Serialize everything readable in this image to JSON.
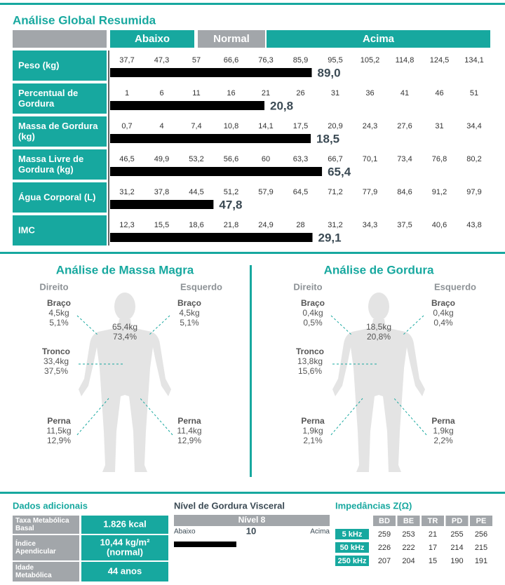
{
  "summary": {
    "title": "Análise Global Resumida",
    "header": [
      "Abaixo",
      "Normal",
      "Acima"
    ],
    "rows": [
      {
        "label": [
          "Peso (kg)"
        ],
        "ticks": [
          {
            "value": 37.7,
            "label": "37,7"
          },
          {
            "value": 47.3,
            "label": "47,3"
          },
          57,
          {
            "value": 66.6,
            "label": "66,6"
          },
          {
            "value": 76.3,
            "label": "76,3"
          },
          {
            "value": 85.9,
            "label": "85,9"
          },
          {
            "value": 95.5,
            "label": "95,5"
          },
          {
            "value": 105.2,
            "label": "105,2"
          },
          {
            "value": 114.8,
            "label": "114,8"
          },
          {
            "value": 124.5,
            "label": "124,5"
          },
          {
            "value": 134.1,
            "label": "134,1"
          }
        ],
        "value": 89.0,
        "value_label": "89,0"
      },
      {
        "label": [
          "Percentual de",
          "Gordura"
        ],
        "ticks": [
          1,
          6,
          11,
          16,
          21,
          26,
          31,
          36,
          41,
          46,
          51
        ],
        "value": 20.8,
        "value_label": "20,8"
      },
      {
        "label": [
          "Massa de Gordura",
          "(kg)"
        ],
        "ticks": [
          {
            "value": 0.7,
            "label": "0,7"
          },
          4,
          {
            "value": 7.4,
            "label": "7,4"
          },
          {
            "value": 10.8,
            "label": "10,8"
          },
          {
            "value": 14.1,
            "label": "14,1"
          },
          {
            "value": 17.5,
            "label": "17,5"
          },
          {
            "value": 20.9,
            "label": "20,9"
          },
          {
            "value": 24.3,
            "label": "24,3"
          },
          {
            "value": 27.6,
            "label": "27,6"
          },
          31,
          {
            "value": 34.4,
            "label": "34,4"
          }
        ],
        "value": 18.5,
        "value_label": "18,5"
      },
      {
        "label": [
          "Massa Livre de",
          "Gordura (kg)"
        ],
        "ticks": [
          {
            "value": 46.5,
            "label": "46,5"
          },
          {
            "value": 49.9,
            "label": "49,9"
          },
          {
            "value": 53.2,
            "label": "53,2"
          },
          {
            "value": 56.6,
            "label": "56,6"
          },
          60,
          {
            "value": 63.3,
            "label": "63,3"
          },
          {
            "value": 66.7,
            "label": "66,7"
          },
          {
            "value": 70.1,
            "label": "70,1"
          },
          {
            "value": 73.4,
            "label": "73,4"
          },
          {
            "value": 76.8,
            "label": "76,8"
          },
          {
            "value": 80.2,
            "label": "80,2"
          }
        ],
        "value": 65.4,
        "value_label": "65,4"
      },
      {
        "label": [
          "Água Corporal (L)"
        ],
        "ticks": [
          {
            "value": 31.2,
            "label": "31,2"
          },
          {
            "value": 37.8,
            "label": "37,8"
          },
          {
            "value": 44.5,
            "label": "44,5"
          },
          {
            "value": 51.2,
            "label": "51,2"
          },
          {
            "value": 57.9,
            "label": "57,9"
          },
          {
            "value": 64.5,
            "label": "64,5"
          },
          {
            "value": 71.2,
            "label": "71,2"
          },
          {
            "value": 77.9,
            "label": "77,9"
          },
          {
            "value": 84.6,
            "label": "84,6"
          },
          {
            "value": 91.2,
            "label": "91,2"
          },
          {
            "value": 97.9,
            "label": "97,9"
          }
        ],
        "value": 47.8,
        "value_label": "47,8"
      },
      {
        "label": [
          "IMC"
        ],
        "ticks": [
          {
            "value": 12.3,
            "label": "12,3"
          },
          {
            "value": 15.5,
            "label": "15,5"
          },
          {
            "value": 18.6,
            "label": "18,6"
          },
          {
            "value": 21.8,
            "label": "21,8"
          },
          {
            "value": 24.9,
            "label": "24,9"
          },
          28,
          {
            "value": 31.2,
            "label": "31,2"
          },
          {
            "value": 34.3,
            "label": "34,3"
          },
          {
            "value": 37.5,
            "label": "37,5"
          },
          {
            "value": 40.6,
            "label": "40,6"
          },
          {
            "value": 43.8,
            "label": "43,8"
          }
        ],
        "value": 29.1,
        "value_label": "29,1"
      }
    ]
  },
  "panels": [
    {
      "title": "Análise de Massa Magra",
      "right_side": "Direito",
      "left_side": "Esquerdo",
      "total": [
        "65,4kg",
        "73,4%"
      ],
      "segments": [
        {
          "name": "Braço",
          "values": [
            "4,5kg",
            "5,1%"
          ]
        },
        {
          "name": "Braço",
          "values": [
            "4,5kg",
            "5,1%"
          ]
        },
        {
          "name": "Tronco",
          "values": [
            "33,4kg",
            "37,5%"
          ]
        },
        {
          "name": "Perna",
          "values": [
            "11,5kg",
            "12,9%"
          ]
        },
        {
          "name": "Perna",
          "values": [
            "11,4kg",
            "12,9%"
          ]
        }
      ]
    },
    {
      "title": "Análise de Gordura",
      "right_side": "Direito",
      "left_side": "Esquerdo",
      "total": [
        "18,5kg",
        "20,8%"
      ],
      "segments": [
        {
          "name": "Braço",
          "values": [
            "0,4kg",
            "0,5%"
          ]
        },
        {
          "name": "Braço",
          "values": [
            "0,4kg",
            "0,4%"
          ]
        },
        {
          "name": "Tronco",
          "values": [
            "13,8kg",
            "15,6%"
          ]
        },
        {
          "name": "Perna",
          "values": [
            "1,9kg",
            "2,1%"
          ]
        },
        {
          "name": "Perna",
          "values": [
            "1,9kg",
            "2,2%"
          ]
        }
      ]
    }
  ],
  "additional": {
    "title": "Dados adicionais",
    "rows": [
      {
        "label": [
          "Taxa Metabólica",
          "Basal"
        ],
        "value": [
          "1.826 kcal"
        ]
      },
      {
        "label": [
          "Índice",
          "Apendicular"
        ],
        "value": [
          "10,44 kg/m²",
          "(normal)"
        ]
      },
      {
        "label": [
          "Idade",
          "Metabólica"
        ],
        "value": [
          "44 anos"
        ]
      }
    ]
  },
  "visceral": {
    "title": "Nível de Gordura Visceral",
    "level": "Nível 8",
    "low": "Abaixo",
    "mark": "10",
    "high": "Acima"
  },
  "impedance": {
    "title": "Impedâncias Z(Ω)",
    "columns": [
      "BD",
      "BE",
      "TR",
      "PD",
      "PE"
    ],
    "rows": [
      {
        "label": "5 kHz",
        "values": [
          259,
          253,
          21,
          255,
          256
        ]
      },
      {
        "label": "50 kHz",
        "values": [
          226,
          222,
          17,
          214,
          215
        ]
      },
      {
        "label": "250 kHz",
        "values": [
          207,
          204,
          15,
          190,
          191
        ]
      }
    ]
  }
}
